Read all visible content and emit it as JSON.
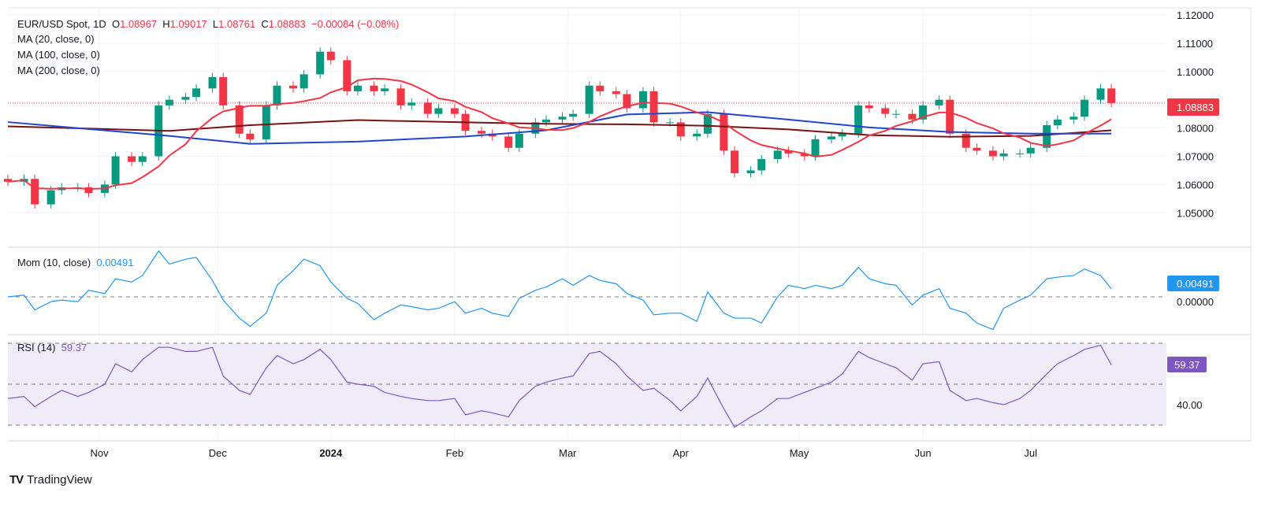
{
  "header": {
    "symbol": "EUR/USD Spot, 1D",
    "o_label": "O",
    "open": "1.08967",
    "h_label": "H",
    "high": "1.09017",
    "l_label": "L",
    "low": "1.08761",
    "c_label": "C",
    "close": "1.08883",
    "change": "−0.00084 (−0.08%)",
    "ma1": "MA (20, close, 0)",
    "ma2": "MA (100, close, 0)",
    "ma3": "MA (200, close, 0)"
  },
  "mom_legend": {
    "label": "Mom (10, close)",
    "value": "0.00491"
  },
  "rsi_legend": {
    "label": "RSI (14)",
    "value": "59.37"
  },
  "price_axis": [
    "1.12000",
    "1.11000",
    "1.10000",
    "1.08000",
    "1.07000",
    "1.06000",
    "1.05000"
  ],
  "price_badge": "1.08883",
  "mom_axis": {
    "zero": "0.00000",
    "badge": "0.00491"
  },
  "rsi_axis": {
    "tick": "40.00",
    "badge": "59.37"
  },
  "time_axis": [
    "Nov",
    "Dec",
    "2024",
    "Feb",
    "Mar",
    "Apr",
    "May",
    "Jun",
    "Jul"
  ],
  "brand": "TradingView",
  "colors": {
    "up": "#089981",
    "down": "#f23645",
    "ma20": "#f23645",
    "ma100": "#1f45d1",
    "ma200": "#7a1212",
    "mom": "#2196f3",
    "rsi": "#7e57c2",
    "rsi_band": "#efebf8"
  },
  "chart_data": {
    "type": "candlestick",
    "title": "EUR/USD Spot, 1D",
    "ylim": [
      1.045,
      1.122
    ],
    "time_ticks": [
      [
        "2023-11-01",
        "Nov"
      ],
      [
        "2023-12-01",
        "Dec"
      ],
      [
        "2024-01-01",
        "2024"
      ],
      [
        "2024-02-01",
        "Feb"
      ],
      [
        "2024-03-01",
        "Mar"
      ],
      [
        "2024-04-01",
        "Apr"
      ],
      [
        "2024-05-01",
        "May"
      ],
      [
        "2024-06-01",
        "Jun"
      ],
      [
        "2024-07-01",
        "Jul"
      ]
    ],
    "dates": [
      "2023-10-09",
      "2023-10-12",
      "2023-10-16",
      "2023-10-19",
      "2023-10-23",
      "2023-10-26",
      "2023-10-30",
      "2023-11-02",
      "2023-11-06",
      "2023-11-09",
      "2023-11-13",
      "2023-11-16",
      "2023-11-20",
      "2023-11-23",
      "2023-11-27",
      "2023-11-30",
      "2023-12-04",
      "2023-12-07",
      "2023-12-11",
      "2023-12-14",
      "2023-12-18",
      "2023-12-21",
      "2023-12-25",
      "2023-12-28",
      "2024-01-01",
      "2024-01-04",
      "2024-01-08",
      "2024-01-11",
      "2024-01-15",
      "2024-01-18",
      "2024-01-22",
      "2024-01-25",
      "2024-01-29",
      "2024-02-01",
      "2024-02-05",
      "2024-02-08",
      "2024-02-12",
      "2024-02-15",
      "2024-02-19",
      "2024-02-22",
      "2024-02-26",
      "2024-02-29",
      "2024-03-04",
      "2024-03-07",
      "2024-03-11",
      "2024-03-14",
      "2024-03-18",
      "2024-03-21",
      "2024-03-25",
      "2024-03-28",
      "2024-04-01",
      "2024-04-04",
      "2024-04-08",
      "2024-04-11",
      "2024-04-15",
      "2024-04-18",
      "2024-04-22",
      "2024-04-25",
      "2024-04-29",
      "2024-05-02",
      "2024-05-06",
      "2024-05-09",
      "2024-05-13",
      "2024-05-16",
      "2024-05-20",
      "2024-05-23",
      "2024-05-27",
      "2024-05-30",
      "2024-06-03",
      "2024-06-06",
      "2024-06-10",
      "2024-06-13",
      "2024-06-17",
      "2024-06-20",
      "2024-06-24",
      "2024-06-27",
      "2024-07-01",
      "2024-07-04",
      "2024-07-08",
      "2024-07-11",
      "2024-07-15",
      "2024-07-18",
      "2024-07-22"
    ],
    "close": [
      1.061,
      1.062,
      1.053,
      1.058,
      1.059,
      1.059,
      1.057,
      1.06,
      1.07,
      1.068,
      1.07,
      1.088,
      1.09,
      1.091,
      1.094,
      1.098,
      1.088,
      1.078,
      1.076,
      1.088,
      1.095,
      1.094,
      1.099,
      1.107,
      1.104,
      1.093,
      1.095,
      1.093,
      1.094,
      1.088,
      1.089,
      1.085,
      1.087,
      1.085,
      1.079,
      1.078,
      1.077,
      1.073,
      1.078,
      1.082,
      1.083,
      1.084,
      1.085,
      1.095,
      1.093,
      1.092,
      1.087,
      1.093,
      1.082,
      1.082,
      1.077,
      1.078,
      1.085,
      1.072,
      1.064,
      1.065,
      1.069,
      1.072,
      1.071,
      1.07,
      1.076,
      1.077,
      1.078,
      1.088,
      1.087,
      1.085,
      1.085,
      1.083,
      1.088,
      1.09,
      1.078,
      1.073,
      1.072,
      1.07,
      1.071,
      1.071,
      1.073,
      1.081,
      1.083,
      1.084,
      1.09,
      1.094,
      1.08883
    ],
    "ma100": [
      [
        "2023-10-09",
        1.0821
      ],
      [
        "2023-11-20",
        1.0772
      ],
      [
        "2023-12-11",
        1.0744
      ],
      [
        "2024-01-08",
        1.0752
      ],
      [
        "2024-02-05",
        1.077
      ],
      [
        "2024-02-26",
        1.0792
      ],
      [
        "2024-03-18",
        1.0848
      ],
      [
        "2024-04-08",
        1.0856
      ],
      [
        "2024-04-29",
        1.083
      ],
      [
        "2024-05-20",
        1.0802
      ],
      [
        "2024-06-10",
        1.0786
      ],
      [
        "2024-07-01",
        1.078
      ],
      [
        "2024-07-22",
        1.078
      ]
    ],
    "ma200": [
      [
        "2023-10-09",
        1.0806
      ],
      [
        "2023-11-20",
        1.079
      ],
      [
        "2023-12-11",
        1.081
      ],
      [
        "2024-01-08",
        1.0828
      ],
      [
        "2024-02-05",
        1.082
      ],
      [
        "2024-02-26",
        1.0815
      ],
      [
        "2024-03-18",
        1.0813
      ],
      [
        "2024-04-08",
        1.0808
      ],
      [
        "2024-04-29",
        1.0795
      ],
      [
        "2024-05-20",
        1.0775
      ],
      [
        "2024-06-10",
        1.0769
      ],
      [
        "2024-07-01",
        1.0772
      ],
      [
        "2024-07-22",
        1.0792
      ]
    ],
    "rsi": [
      43,
      44,
      39,
      44,
      47,
      44,
      46,
      50,
      60,
      56,
      62,
      68,
      68,
      66,
      66,
      68,
      54,
      47,
      45,
      58,
      64,
      60,
      62,
      67,
      62,
      51,
      50,
      49,
      46,
      44,
      43,
      42,
      42,
      43,
      35,
      37,
      36,
      34,
      42,
      49,
      51,
      53,
      54,
      65,
      66,
      60,
      54,
      47,
      48,
      42,
      37,
      44,
      53,
      38,
      29,
      34,
      37,
      43,
      43,
      46,
      48,
      51,
      55,
      66,
      63,
      60,
      58,
      52,
      60,
      61,
      47,
      42,
      43,
      41,
      40,
      43,
      47,
      55,
      60,
      64,
      67,
      69,
      59.37
    ],
    "rsi_levels": [
      70,
      50,
      30
    ]
  }
}
